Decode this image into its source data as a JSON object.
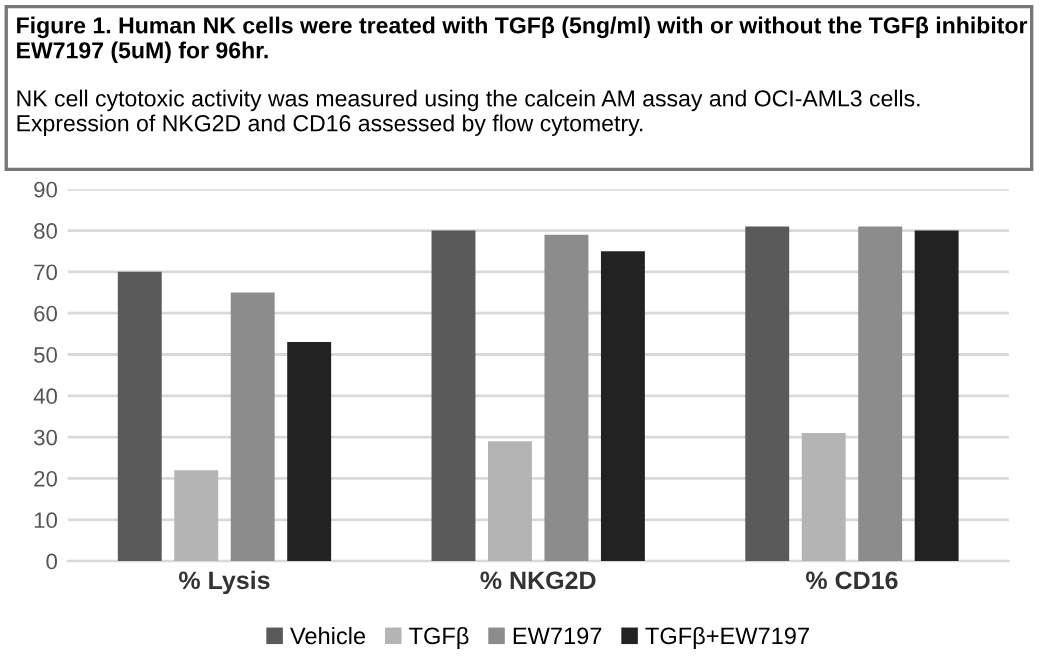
{
  "chart_data": {
    "type": "bar",
    "title": "Figure 1. Human NK cells were treated with TGFβ (5ng/ml) with or without the TGFβ inhibitor EW7197 (5uM) for 96hr.",
    "subtitle": "NK cell cytotoxic activity was measured using the calcein AM assay and OCI-AML3 cells.\nExpression of NKG2D and CD16 assessed by flow cytometry.",
    "categories": [
      "% Lysis",
      "% NKG2D",
      "% CD16"
    ],
    "series": [
      {
        "name": "Vehicle",
        "color": "#5a5a5a",
        "values": [
          70,
          80,
          81
        ]
      },
      {
        "name": "TGFβ",
        "color": "#b4b4b4",
        "values": [
          22,
          29,
          31
        ]
      },
      {
        "name": "EW7197",
        "color": "#8c8c8c",
        "values": [
          65,
          79,
          81
        ]
      },
      {
        "name": "TGFβ+EW7197",
        "color": "#222222",
        "values": [
          53,
          75,
          80
        ]
      }
    ],
    "ylim": [
      0,
      90
    ],
    "yticks": [
      0,
      10,
      20,
      30,
      40,
      50,
      60,
      70,
      80,
      90
    ],
    "grid": "y",
    "legend": "bottom"
  }
}
